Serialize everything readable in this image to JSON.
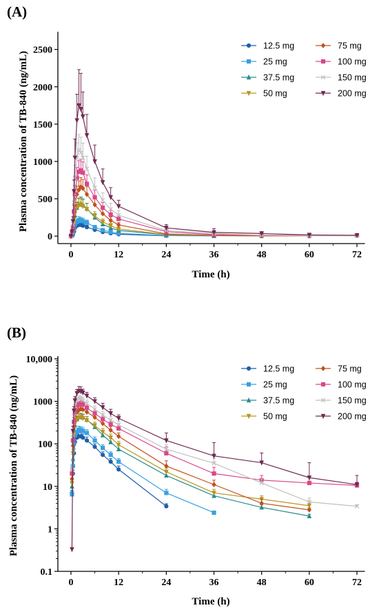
{
  "figure": {
    "panels": [
      {
        "label": "(A)",
        "ylabel": "Plasma concentration of TB-840 (ng/mL)",
        "xlabel": "Time (h)"
      },
      {
        "label": "(B)",
        "ylabel": "Plasma concentration of TB-840 (ng/mL)",
        "xlabel": "Time (h)"
      }
    ]
  },
  "chart_data": [
    {
      "type": "line",
      "panel": "(A)",
      "xlabel": "Time (h)",
      "ylabel": "Plasma concentration of TB-840 (ng/mL)",
      "xlim": [
        -3,
        74
      ],
      "ylim": [
        -100,
        2700
      ],
      "yscale": "linear",
      "xticks": [
        0,
        12,
        24,
        36,
        48,
        60,
        72
      ],
      "xtick_labels": [
        "0",
        "12",
        "24",
        "36",
        "48",
        "60",
        "72"
      ],
      "yticks": [
        0,
        500,
        1000,
        1500,
        2000,
        2500
      ],
      "ytick_labels": [
        "0",
        "500",
        "1000",
        "1500",
        "2000",
        "2500"
      ],
      "grid": false,
      "legend_position": "top-right",
      "legend_columns": 2,
      "series": [
        {
          "name": "12.5 mg",
          "color": "#1f5fa8",
          "marker": "circle",
          "x": [
            0,
            0.25,
            0.5,
            0.75,
            1,
            1.5,
            2,
            2.5,
            3,
            4,
            6,
            8,
            10,
            12,
            24
          ],
          "y": [
            0,
            12,
            20,
            60,
            110,
            140,
            150,
            150,
            140,
            120,
            85,
            55,
            38,
            25,
            4
          ],
          "err": [
            0,
            2,
            4,
            15,
            25,
            30,
            35,
            35,
            30,
            25,
            15,
            10,
            7,
            5,
            1
          ]
        },
        {
          "name": "25 mg",
          "color": "#3aa0e0",
          "marker": "square",
          "x": [
            0,
            0.25,
            0.5,
            0.75,
            1,
            1.5,
            2,
            2.5,
            3,
            4,
            6,
            8,
            10,
            12,
            24,
            36
          ],
          "y": [
            0,
            10,
            30,
            100,
            160,
            190,
            215,
            205,
            200,
            180,
            120,
            80,
            55,
            38,
            7,
            2.4
          ],
          "err": [
            0,
            3,
            8,
            20,
            30,
            40,
            45,
            45,
            40,
            35,
            25,
            15,
            10,
            7,
            2,
            0.3
          ]
        },
        {
          "name": "37.5 mg",
          "color": "#2a8c8c",
          "marker": "triangle",
          "x": [
            0,
            0.25,
            0.5,
            0.75,
            1,
            1.5,
            2,
            2.5,
            3,
            4,
            6,
            8,
            10,
            12,
            24,
            36,
            48,
            60
          ],
          "y": [
            0,
            15,
            45,
            150,
            280,
            380,
            430,
            440,
            420,
            370,
            250,
            160,
            110,
            75,
            18,
            6,
            3.2,
            2
          ],
          "err": [
            0,
            5,
            12,
            40,
            60,
            70,
            80,
            85,
            80,
            70,
            50,
            35,
            25,
            15,
            4,
            1.5,
            0.5,
            0.3
          ]
        },
        {
          "name": "50 mg",
          "color": "#b8961f",
          "marker": "triangle-down",
          "x": [
            0,
            0.25,
            0.5,
            0.75,
            1,
            1.5,
            2,
            2.5,
            3,
            4,
            6,
            8,
            10,
            12,
            24,
            36,
            48,
            60
          ],
          "y": [
            0,
            20,
            60,
            170,
            300,
            380,
            410,
            420,
            400,
            360,
            270,
            190,
            140,
            95,
            22,
            7,
            5,
            3.5
          ],
          "err": [
            0,
            6,
            15,
            45,
            70,
            80,
            90,
            90,
            85,
            75,
            55,
            40,
            30,
            20,
            5,
            1.5,
            1,
            0.5
          ]
        },
        {
          "name": "75 mg",
          "color": "#c0501e",
          "marker": "diamond",
          "x": [
            0,
            0.25,
            0.5,
            0.75,
            1,
            1.5,
            2,
            2.5,
            3,
            4,
            6,
            8,
            10,
            12,
            24,
            36,
            48,
            60
          ],
          "y": [
            0,
            30,
            90,
            250,
            420,
            560,
            620,
            660,
            640,
            560,
            420,
            300,
            210,
            150,
            30,
            10,
            4,
            2.8
          ],
          "err": [
            0,
            10,
            25,
            60,
            90,
            110,
            120,
            125,
            120,
            105,
            80,
            60,
            45,
            30,
            8,
            2.5,
            1,
            0.4
          ]
        },
        {
          "name": "100 mg",
          "color": "#d8488a",
          "marker": "square",
          "x": [
            0,
            0.25,
            0.5,
            0.75,
            1,
            1.5,
            2,
            2.5,
            3,
            4,
            6,
            8,
            10,
            12,
            24,
            36,
            48,
            60,
            72
          ],
          "y": [
            0,
            40,
            120,
            330,
            560,
            780,
            860,
            880,
            850,
            700,
            520,
            380,
            290,
            230,
            60,
            20,
            14,
            12,
            10.5
          ],
          "err": [
            0,
            12,
            35,
            80,
            120,
            140,
            150,
            150,
            145,
            120,
            95,
            70,
            55,
            40,
            15,
            6,
            3,
            2.5,
            2
          ]
        },
        {
          "name": "150 mg",
          "color": "#c0c0c0",
          "marker": "x",
          "x": [
            0,
            0.25,
            0.5,
            0.75,
            1,
            1.5,
            2,
            2.5,
            3,
            4,
            6,
            8,
            10,
            12,
            24,
            36,
            48,
            60,
            72
          ],
          "y": [
            0,
            50,
            160,
            450,
            780,
            1050,
            1150,
            1120,
            1050,
            900,
            650,
            480,
            360,
            280,
            75,
            35,
            12,
            4.3,
            3.4
          ],
          "err": [
            0,
            15,
            45,
            110,
            170,
            200,
            210,
            205,
            195,
            170,
            130,
            100,
            80,
            60,
            20,
            10,
            3,
            1,
            0.5
          ]
        },
        {
          "name": "200 mg",
          "color": "#6e2a52",
          "marker": "triangle-down",
          "x": [
            0,
            0.25,
            0.5,
            0.75,
            1,
            1.5,
            2,
            2.5,
            3,
            4,
            6,
            8,
            10,
            12,
            24,
            36,
            48,
            60,
            72
          ],
          "y": [
            0,
            60,
            200,
            600,
            1050,
            1550,
            1750,
            1700,
            1600,
            1350,
            1000,
            720,
            520,
            400,
            110,
            50,
            35,
            16,
            11
          ],
          "err": [
            0,
            20,
            60,
            150,
            250,
            350,
            480,
            480,
            330,
            280,
            220,
            180,
            130,
            80,
            45,
            50,
            25,
            18,
            7
          ]
        }
      ]
    },
    {
      "type": "line",
      "panel": "(B)",
      "xlabel": "Time (h)",
      "ylabel": "Plasma concentration of TB-840 (ng/mL)",
      "xlim": [
        -3,
        74
      ],
      "ylim": [
        0.1,
        10000
      ],
      "yscale": "log",
      "xticks": [
        0,
        12,
        24,
        36,
        48,
        60,
        72
      ],
      "xtick_labels": [
        "0",
        "12",
        "24",
        "36",
        "48",
        "60",
        "72"
      ],
      "yticks": [
        0.1,
        1,
        10,
        100,
        1000,
        10000
      ],
      "ytick_labels": [
        "0.1",
        "1",
        "10",
        "100",
        "1000",
        "10,000"
      ],
      "grid": false,
      "legend_position": "top-right",
      "legend_columns": 2,
      "series": [
        {
          "name": "12.5 mg",
          "color": "#1f5fa8",
          "marker": "circle",
          "x": [
            0.25,
            0.5,
            0.75,
            1,
            1.5,
            2,
            2.5,
            3,
            4,
            6,
            8,
            10,
            12,
            24
          ],
          "y": [
            7,
            20,
            60,
            110,
            140,
            150,
            150,
            140,
            120,
            85,
            55,
            38,
            25,
            3.4
          ],
          "err": [
            1,
            4,
            15,
            25,
            30,
            35,
            35,
            30,
            25,
            15,
            10,
            7,
            5,
            0.5
          ]
        },
        {
          "name": "25 mg",
          "color": "#3aa0e0",
          "marker": "square",
          "x": [
            0.25,
            0.5,
            0.75,
            1,
            1.5,
            2,
            2.5,
            3,
            4,
            6,
            8,
            10,
            12,
            24,
            36
          ],
          "y": [
            6.5,
            30,
            100,
            160,
            190,
            215,
            205,
            200,
            180,
            120,
            80,
            55,
            38,
            7,
            2.4
          ],
          "err": [
            1,
            8,
            20,
            30,
            40,
            45,
            45,
            40,
            35,
            25,
            15,
            10,
            7,
            1.5,
            0.2
          ]
        },
        {
          "name": "37.5 mg",
          "color": "#2a8c8c",
          "marker": "triangle",
          "x": [
            0.25,
            0.5,
            0.75,
            1,
            1.5,
            2,
            2.5,
            3,
            4,
            6,
            8,
            10,
            12,
            24,
            36,
            48,
            60
          ],
          "y": [
            10,
            45,
            150,
            280,
            380,
            430,
            440,
            420,
            370,
            250,
            160,
            110,
            75,
            18,
            6,
            3.2,
            2
          ],
          "err": [
            2,
            12,
            40,
            60,
            70,
            80,
            85,
            80,
            70,
            50,
            35,
            25,
            15,
            4,
            1.5,
            0.5,
            0.2
          ]
        },
        {
          "name": "50 mg",
          "color": "#b8961f",
          "marker": "triangle-down",
          "x": [
            0.25,
            0.5,
            0.75,
            1,
            1.5,
            2,
            2.5,
            3,
            4,
            6,
            8,
            10,
            12,
            24,
            36,
            48,
            60
          ],
          "y": [
            12,
            60,
            170,
            300,
            380,
            410,
            420,
            400,
            360,
            270,
            190,
            140,
            95,
            22,
            7,
            5,
            3.5
          ],
          "err": [
            3,
            15,
            45,
            70,
            80,
            90,
            90,
            85,
            75,
            55,
            40,
            30,
            20,
            5,
            1.5,
            1,
            0.5
          ]
        },
        {
          "name": "75 mg",
          "color": "#c0501e",
          "marker": "diamond",
          "x": [
            0.25,
            0.5,
            0.75,
            1,
            1.5,
            2,
            2.5,
            3,
            4,
            6,
            8,
            10,
            12,
            24,
            36,
            48,
            60
          ],
          "y": [
            15,
            90,
            250,
            420,
            560,
            620,
            660,
            640,
            560,
            420,
            300,
            210,
            150,
            30,
            11,
            4,
            2.8
          ],
          "err": [
            4,
            25,
            60,
            90,
            110,
            120,
            125,
            120,
            105,
            80,
            60,
            45,
            30,
            10,
            3,
            1,
            0.3
          ]
        },
        {
          "name": "100 mg",
          "color": "#d8488a",
          "marker": "square",
          "x": [
            0.25,
            0.5,
            0.75,
            1,
            1.5,
            2,
            2.5,
            3,
            4,
            6,
            8,
            10,
            12,
            24,
            36,
            48,
            60,
            72
          ],
          "y": [
            20,
            120,
            330,
            560,
            780,
            860,
            880,
            850,
            700,
            520,
            380,
            290,
            230,
            60,
            20,
            14,
            12,
            10.5
          ],
          "err": [
            5,
            35,
            80,
            120,
            140,
            150,
            150,
            145,
            120,
            95,
            70,
            55,
            40,
            25,
            8,
            4,
            5,
            2
          ]
        },
        {
          "name": "150 mg",
          "color": "#c0c0c0",
          "marker": "x",
          "x": [
            0.25,
            0.5,
            0.75,
            1,
            1.5,
            2,
            2.5,
            3,
            4,
            6,
            8,
            10,
            12,
            24,
            36,
            48,
            60,
            72
          ],
          "y": [
            25,
            160,
            450,
            780,
            1050,
            1150,
            1120,
            1050,
            900,
            650,
            480,
            360,
            280,
            75,
            35,
            12,
            4.3,
            3.4
          ],
          "err": [
            7,
            45,
            110,
            170,
            200,
            210,
            205,
            195,
            170,
            130,
            100,
            80,
            60,
            20,
            10,
            3,
            1,
            0.3
          ]
        },
        {
          "name": "200 mg",
          "color": "#6e2a52",
          "marker": "triangle-down",
          "x": [
            0.25,
            0.5,
            0.75,
            1,
            1.5,
            2,
            2.5,
            3,
            4,
            6,
            8,
            10,
            12,
            24,
            36,
            48,
            60,
            72
          ],
          "y": [
            0.33,
            200,
            600,
            1050,
            1550,
            1750,
            1700,
            1600,
            1350,
            1000,
            720,
            520,
            400,
            120,
            52,
            36,
            16,
            11
          ],
          "err": [
            0,
            60,
            150,
            250,
            350,
            480,
            480,
            330,
            280,
            220,
            180,
            130,
            80,
            60,
            55,
            25,
            20,
            7
          ]
        }
      ]
    }
  ]
}
